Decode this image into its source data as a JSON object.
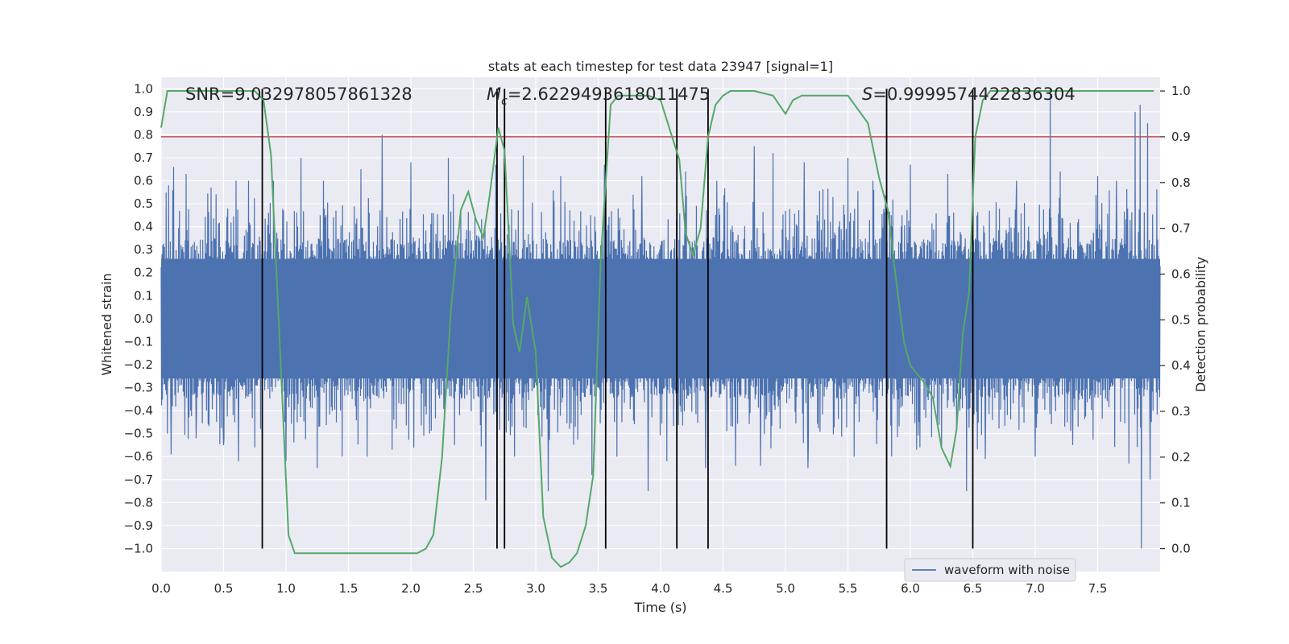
{
  "chart_data": {
    "type": "line",
    "title": "stats at each timestep for test data 23947 [signal=1]",
    "xlabel": "Time (s)",
    "ylabel_left": "Whitened strain",
    "ylabel_right": "Detection probability",
    "xlim": [
      0.0,
      8.0
    ],
    "ylim_left": [
      -1.1,
      1.05
    ],
    "ylim_right": [
      -0.05,
      1.03
    ],
    "x_ticks": [
      0.0,
      0.5,
      1.0,
      1.5,
      2.0,
      2.5,
      3.0,
      3.5,
      4.0,
      4.5,
      5.0,
      5.5,
      6.0,
      6.5,
      7.0,
      7.5
    ],
    "x_tick_labels": [
      "0.0",
      "0.5",
      "1.0",
      "1.5",
      "2.0",
      "2.5",
      "3.0",
      "3.5",
      "4.0",
      "4.5",
      "5.0",
      "5.5",
      "6.0",
      "6.5",
      "7.0",
      "7.5"
    ],
    "y_left_ticks": [
      1.0,
      0.9,
      0.8,
      0.7,
      0.6,
      0.5,
      0.4,
      0.3,
      0.2,
      0.1,
      0.0,
      -0.1,
      -0.2,
      -0.3,
      -0.4,
      -0.5,
      -0.6,
      -0.7,
      -0.8,
      -0.9,
      -1.0
    ],
    "y_left_tick_labels": [
      "1.0",
      "0.9",
      "0.8",
      "0.7",
      "0.6",
      "0.5",
      "0.4",
      "0.3",
      "0.2",
      "0.1",
      "0.0",
      "−0.1",
      "−0.2",
      "−0.3",
      "−0.4",
      "−0.5",
      "−0.6",
      "−0.7",
      "−0.8",
      "−0.9",
      "−1.0"
    ],
    "y_right_ticks": [
      1.0,
      0.9,
      0.8,
      0.7,
      0.6,
      0.5,
      0.4,
      0.3,
      0.2,
      0.1,
      0.0
    ],
    "y_right_tick_labels": [
      "1.0",
      "0.9",
      "0.8",
      "0.7",
      "0.6",
      "0.5",
      "0.4",
      "0.3",
      "0.2",
      "0.1",
      "0.0"
    ],
    "annotations": {
      "snr": "SNR=9.032978057861328",
      "mc_symbol": "M",
      "mc_sub": "c",
      "mc_value": "=2.6229493618011475",
      "s_symbol": "S",
      "s_value": "=0.9999574422836304"
    },
    "threshold": {
      "value": 0.9,
      "axis": "right",
      "color": "#c44e52"
    },
    "vertical_lines": [
      0.81,
      2.69,
      2.75,
      3.56,
      4.13,
      4.38,
      5.81,
      6.5
    ],
    "vertical_line_range_left": [
      -1.0,
      1.0
    ],
    "legend": {
      "label": "waveform with noise",
      "location": "lower-right"
    },
    "series": [
      {
        "name": "waveform with noise",
        "axis": "left",
        "color": "#4c72b0",
        "description": "dense noisy strain trace, roughly -0.4..0.4 with spikes",
        "spikes": [
          [
            0.06,
            0.58
          ],
          [
            0.08,
            -0.59
          ],
          [
            0.1,
            0.66
          ],
          [
            0.2,
            0.63
          ],
          [
            0.28,
            -0.52
          ],
          [
            0.4,
            0.57
          ],
          [
            0.5,
            -0.55
          ],
          [
            0.6,
            0.6
          ],
          [
            0.62,
            -0.62
          ],
          [
            0.7,
            0.6
          ],
          [
            0.75,
            -0.56
          ],
          [
            0.9,
            0.6
          ],
          [
            1.0,
            -0.62
          ],
          [
            1.12,
            0.7
          ],
          [
            1.25,
            -0.65
          ],
          [
            1.3,
            0.6
          ],
          [
            1.45,
            -0.6
          ],
          [
            1.6,
            0.65
          ],
          [
            1.65,
            -0.6
          ],
          [
            1.77,
            0.8
          ],
          [
            1.85,
            -0.57
          ],
          [
            2.0,
            0.68
          ],
          [
            2.15,
            -0.5
          ],
          [
            2.3,
            0.7
          ],
          [
            2.35,
            -0.55
          ],
          [
            2.6,
            -0.79
          ],
          [
            2.68,
            0.67
          ],
          [
            2.83,
            -0.6
          ],
          [
            2.9,
            0.71
          ],
          [
            3.1,
            -0.75
          ],
          [
            3.2,
            0.62
          ],
          [
            3.45,
            -0.68
          ],
          [
            3.55,
            0.67
          ],
          [
            3.65,
            -0.6
          ],
          [
            3.85,
            0.62
          ],
          [
            3.9,
            -0.75
          ],
          [
            4.05,
            -0.62
          ],
          [
            4.2,
            0.64
          ],
          [
            4.36,
            -0.65
          ],
          [
            4.45,
            0.6
          ],
          [
            4.6,
            -0.64
          ],
          [
            4.75,
            0.75
          ],
          [
            4.8,
            -0.64
          ],
          [
            4.9,
            0.72
          ],
          [
            5.15,
            0.68
          ],
          [
            5.18,
            -0.65
          ],
          [
            5.5,
            0.7
          ],
          [
            5.55,
            -0.6
          ],
          [
            5.7,
            0.6
          ],
          [
            5.85,
            -0.6
          ],
          [
            6.0,
            0.67
          ],
          [
            6.05,
            -0.57
          ],
          [
            6.3,
            0.63
          ],
          [
            6.45,
            -0.75
          ],
          [
            6.6,
            -0.61
          ],
          [
            6.85,
            0.6
          ],
          [
            7.0,
            -0.6
          ],
          [
            7.12,
            1.0
          ],
          [
            7.2,
            0.64
          ],
          [
            7.3,
            -0.55
          ],
          [
            7.5,
            0.62
          ],
          [
            7.65,
            0.6
          ],
          [
            7.75,
            -0.63
          ],
          [
            7.8,
            0.9
          ],
          [
            7.84,
            0.93
          ],
          [
            7.85,
            -1.0
          ],
          [
            7.9,
            0.85
          ],
          [
            7.92,
            -0.7
          ]
        ]
      },
      {
        "name": "detection probability",
        "axis": "right",
        "color": "#55a868",
        "x": [
          0.0,
          0.05,
          0.2,
          0.4,
          0.6,
          0.75,
          0.82,
          0.88,
          0.95,
          1.02,
          1.07,
          1.12,
          1.2,
          1.3,
          1.45,
          1.6,
          1.75,
          1.9,
          2.05,
          2.12,
          2.18,
          2.25,
          2.32,
          2.4,
          2.46,
          2.52,
          2.58,
          2.63,
          2.7,
          2.75,
          2.82,
          2.87,
          2.93,
          3.0,
          3.06,
          3.13,
          3.2,
          3.27,
          3.33,
          3.4,
          3.46,
          3.52,
          3.6,
          3.66,
          3.72,
          3.8,
          3.9,
          4.0,
          4.08,
          4.15,
          4.2,
          4.26,
          4.32,
          4.38,
          4.44,
          4.5,
          4.56,
          4.62,
          4.75,
          4.9,
          5.0,
          5.06,
          5.13,
          5.2,
          5.3,
          5.4,
          5.5,
          5.58,
          5.66,
          5.75,
          5.82,
          5.88,
          5.95,
          6.0,
          6.06,
          6.12,
          6.18,
          6.25,
          6.32,
          6.37,
          6.42,
          6.47,
          6.52,
          6.58,
          6.64,
          6.7,
          6.8,
          7.0,
          7.5,
          7.95
        ],
        "y": [
          0.92,
          1.0,
          1.0,
          1.0,
          1.0,
          1.0,
          0.98,
          0.86,
          0.45,
          0.03,
          -0.01,
          -0.01,
          -0.01,
          -0.01,
          -0.01,
          -0.01,
          -0.01,
          -0.01,
          -0.01,
          0.0,
          0.03,
          0.2,
          0.52,
          0.74,
          0.78,
          0.72,
          0.68,
          0.77,
          0.92,
          0.87,
          0.49,
          0.43,
          0.55,
          0.43,
          0.07,
          -0.02,
          -0.04,
          -0.03,
          -0.01,
          0.05,
          0.16,
          0.63,
          0.97,
          0.99,
          0.99,
          0.99,
          0.99,
          0.98,
          0.91,
          0.85,
          0.69,
          0.64,
          0.7,
          0.9,
          0.97,
          0.99,
          1.0,
          1.0,
          1.0,
          0.99,
          0.95,
          0.98,
          0.99,
          0.99,
          0.99,
          0.99,
          0.99,
          0.96,
          0.93,
          0.81,
          0.74,
          0.6,
          0.45,
          0.4,
          0.38,
          0.36,
          0.33,
          0.22,
          0.18,
          0.26,
          0.47,
          0.56,
          0.9,
          0.98,
          1.0,
          1.0,
          1.0,
          1.0,
          1.0,
          1.0
        ]
      }
    ]
  }
}
